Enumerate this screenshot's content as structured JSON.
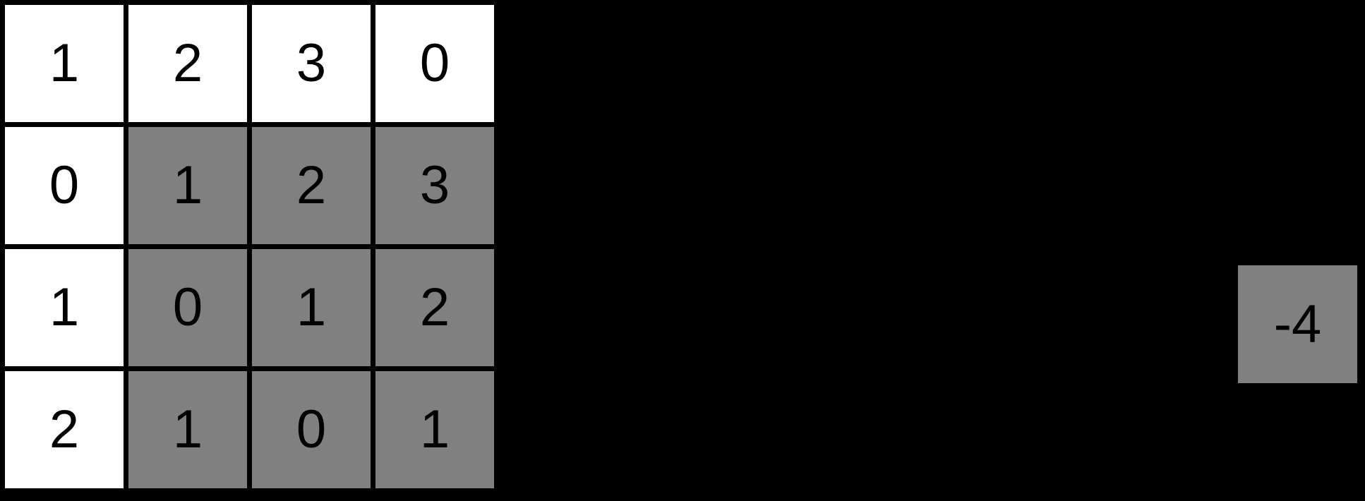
{
  "colors": {
    "background": "#000000",
    "white_cell": "#ffffff",
    "gray_cell": "#808080",
    "grid_line": "#000000",
    "text": "#000000"
  },
  "grid": {
    "rows": [
      {
        "cells": [
          {
            "value": "1",
            "shade": "white"
          },
          {
            "value": "2",
            "shade": "white"
          },
          {
            "value": "3",
            "shade": "white"
          },
          {
            "value": "0",
            "shade": "white"
          }
        ]
      },
      {
        "cells": [
          {
            "value": "0",
            "shade": "white"
          },
          {
            "value": "1",
            "shade": "gray"
          },
          {
            "value": "2",
            "shade": "gray"
          },
          {
            "value": "3",
            "shade": "gray"
          }
        ]
      },
      {
        "cells": [
          {
            "value": "1",
            "shade": "white"
          },
          {
            "value": "0",
            "shade": "gray"
          },
          {
            "value": "1",
            "shade": "gray"
          },
          {
            "value": "2",
            "shade": "gray"
          }
        ]
      },
      {
        "cells": [
          {
            "value": "2",
            "shade": "white"
          },
          {
            "value": "1",
            "shade": "gray"
          },
          {
            "value": "0",
            "shade": "gray"
          },
          {
            "value": "1",
            "shade": "gray"
          }
        ]
      }
    ]
  },
  "floating_tile": {
    "value": "-4",
    "shade": "gray"
  }
}
